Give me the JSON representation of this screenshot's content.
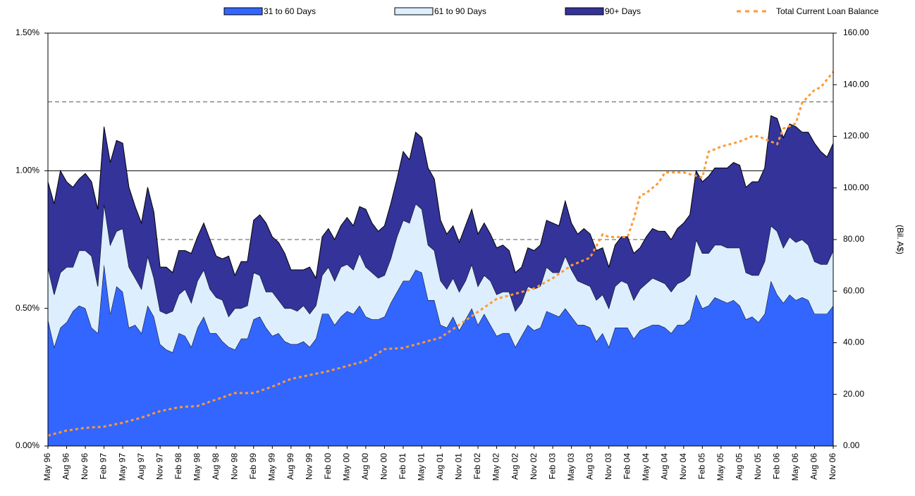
{
  "chart_data": {
    "type": "area",
    "stacked": true,
    "categories": [
      "May 96",
      null,
      null,
      "Aug 96",
      null,
      null,
      "Nov 96",
      null,
      null,
      "Feb 97",
      null,
      null,
      "May 97",
      null,
      null,
      "Aug 97",
      null,
      null,
      "Nov 97",
      null,
      null,
      "Feb 98",
      null,
      null,
      "May 98",
      null,
      null,
      "Aug 98",
      null,
      null,
      "Nov 98",
      null,
      null,
      "Feb 99",
      null,
      null,
      "May 99",
      null,
      null,
      "Aug 99",
      null,
      null,
      "Nov 99",
      null,
      null,
      "Feb 00",
      null,
      null,
      "May 00",
      null,
      null,
      "Aug 00",
      null,
      null,
      "Nov 00",
      null,
      null,
      "Feb 01",
      null,
      null,
      "May 01",
      null,
      null,
      "Aug 01",
      null,
      null,
      "Nov 01",
      null,
      null,
      "Feb 02",
      null,
      null,
      "May 02",
      null,
      null,
      "Aug 02",
      null,
      null,
      "Nov 02",
      null,
      null,
      "Feb 03",
      null,
      null,
      "May 03",
      null,
      null,
      "Aug 03",
      null,
      null,
      "Nov 03",
      null,
      null,
      "Feb 04",
      null,
      null,
      "May 04",
      null,
      null,
      "Aug 04",
      null,
      null,
      "Nov 04",
      null,
      null,
      "Feb 05",
      null,
      null,
      "May 05",
      null,
      null,
      "Aug 05",
      null,
      null,
      "Nov 05",
      null,
      null,
      "Feb 06",
      null,
      null,
      "May 06",
      null,
      null,
      "Aug 06",
      null,
      null,
      "Nov 06"
    ],
    "series": [
      {
        "name": "31 to 60 Days",
        "color": "#3366ff",
        "values": [
          0.46,
          0.36,
          0.43,
          0.45,
          0.49,
          0.51,
          0.5,
          0.43,
          0.41,
          0.66,
          0.48,
          0.58,
          0.56,
          0.43,
          0.44,
          0.41,
          0.51,
          0.47,
          0.37,
          0.35,
          0.34,
          0.41,
          0.4,
          0.36,
          0.43,
          0.47,
          0.41,
          0.41,
          0.38,
          0.36,
          0.35,
          0.39,
          0.39,
          0.46,
          0.47,
          0.43,
          0.4,
          0.41,
          0.38,
          0.37,
          0.37,
          0.38,
          0.36,
          0.39,
          0.48,
          0.48,
          0.44,
          0.47,
          0.49,
          0.48,
          0.51,
          0.47,
          0.46,
          0.46,
          0.47,
          0.52,
          0.56,
          0.6,
          0.6,
          0.64,
          0.63,
          0.53,
          0.53,
          0.44,
          0.43,
          0.47,
          0.42,
          0.46,
          0.5,
          0.44,
          0.48,
          0.44,
          0.4,
          0.41,
          0.41,
          0.36,
          0.4,
          0.44,
          0.42,
          0.43,
          0.49,
          0.48,
          0.47,
          0.5,
          0.47,
          0.44,
          0.44,
          0.43,
          0.38,
          0.41,
          0.36,
          0.43,
          0.43,
          0.43,
          0.39,
          0.42,
          0.43,
          0.44,
          0.44,
          0.43,
          0.41,
          0.44,
          0.44,
          0.46,
          0.55,
          0.5,
          0.51,
          0.54,
          0.53,
          0.52,
          0.53,
          0.51,
          0.46,
          0.47,
          0.45,
          0.48,
          0.6,
          0.55,
          0.52,
          0.55,
          0.53,
          0.54,
          0.53,
          0.48,
          0.48,
          0.48,
          0.51
        ]
      },
      {
        "name": "61 to 90 Days",
        "color": "#ddeeff",
        "values": [
          0.19,
          0.19,
          0.2,
          0.2,
          0.16,
          0.2,
          0.21,
          0.26,
          0.17,
          0.22,
          0.25,
          0.2,
          0.23,
          0.22,
          0.17,
          0.16,
          0.18,
          0.14,
          0.12,
          0.13,
          0.15,
          0.14,
          0.17,
          0.16,
          0.17,
          0.17,
          0.16,
          0.13,
          0.15,
          0.11,
          0.15,
          0.11,
          0.12,
          0.17,
          0.15,
          0.13,
          0.16,
          0.12,
          0.12,
          0.13,
          0.12,
          0.13,
          0.12,
          0.12,
          0.14,
          0.17,
          0.16,
          0.18,
          0.17,
          0.16,
          0.19,
          0.18,
          0.17,
          0.15,
          0.15,
          0.16,
          0.2,
          0.22,
          0.21,
          0.24,
          0.23,
          0.2,
          0.18,
          0.16,
          0.14,
          0.14,
          0.14,
          0.14,
          0.16,
          0.14,
          0.14,
          0.16,
          0.15,
          0.15,
          0.15,
          0.13,
          0.12,
          0.14,
          0.15,
          0.15,
          0.16,
          0.15,
          0.16,
          0.19,
          0.17,
          0.16,
          0.15,
          0.15,
          0.15,
          0.14,
          0.14,
          0.15,
          0.17,
          0.16,
          0.14,
          0.15,
          0.16,
          0.17,
          0.16,
          0.16,
          0.15,
          0.15,
          0.16,
          0.16,
          0.2,
          0.2,
          0.19,
          0.19,
          0.2,
          0.2,
          0.19,
          0.21,
          0.17,
          0.15,
          0.17,
          0.19,
          0.2,
          0.23,
          0.2,
          0.21,
          0.21,
          0.21,
          0.2,
          0.19,
          0.18,
          0.18,
          0.2
        ]
      },
      {
        "name": "90+ Days",
        "color": "#333399",
        "values": [
          0.31,
          0.33,
          0.37,
          0.31,
          0.29,
          0.26,
          0.28,
          0.27,
          0.28,
          0.28,
          0.3,
          0.33,
          0.31,
          0.29,
          0.26,
          0.24,
          0.25,
          0.24,
          0.16,
          0.17,
          0.14,
          0.16,
          0.14,
          0.18,
          0.16,
          0.17,
          0.18,
          0.15,
          0.15,
          0.22,
          0.12,
          0.17,
          0.16,
          0.19,
          0.22,
          0.25,
          0.2,
          0.21,
          0.2,
          0.14,
          0.15,
          0.13,
          0.17,
          0.1,
          0.14,
          0.14,
          0.15,
          0.15,
          0.17,
          0.16,
          0.17,
          0.21,
          0.18,
          0.17,
          0.18,
          0.2,
          0.21,
          0.25,
          0.23,
          0.26,
          0.26,
          0.28,
          0.26,
          0.22,
          0.2,
          0.19,
          0.18,
          0.2,
          0.2,
          0.19,
          0.19,
          0.17,
          0.17,
          0.17,
          0.15,
          0.14,
          0.13,
          0.14,
          0.14,
          0.15,
          0.17,
          0.18,
          0.17,
          0.2,
          0.17,
          0.17,
          0.2,
          0.19,
          0.18,
          0.17,
          0.15,
          0.15,
          0.16,
          0.17,
          0.17,
          0.15,
          0.17,
          0.18,
          0.18,
          0.19,
          0.19,
          0.2,
          0.21,
          0.22,
          0.25,
          0.26,
          0.28,
          0.28,
          0.28,
          0.29,
          0.31,
          0.3,
          0.31,
          0.34,
          0.34,
          0.34,
          0.4,
          0.41,
          0.4,
          0.41,
          0.42,
          0.39,
          0.41,
          0.43,
          0.41,
          0.39,
          0.39
        ]
      },
      {
        "name": "Total Current Loan Balance",
        "color": "#ff9933",
        "type": "line",
        "axis": "y2",
        "values": [
          4.0,
          4.7,
          5.3,
          6.0,
          6.3,
          6.7,
          7.0,
          7.2,
          7.3,
          7.5,
          8.0,
          8.5,
          9.0,
          9.7,
          10.3,
          11.0,
          11.8,
          12.7,
          13.5,
          14.0,
          14.5,
          15.0,
          15.2,
          15.3,
          15.5,
          16.3,
          17.2,
          18.0,
          18.8,
          19.7,
          20.5,
          20.5,
          20.5,
          20.5,
          21.3,
          22.2,
          23.0,
          24.0,
          25.0,
          26.0,
          26.5,
          27.0,
          27.5,
          28.0,
          28.5,
          29.0,
          29.7,
          30.3,
          31.0,
          31.7,
          32.3,
          33.0,
          34.5,
          36.0,
          37.5,
          37.7,
          37.8,
          38.0,
          38.7,
          39.3,
          40.0,
          40.7,
          41.3,
          42.0,
          43.7,
          45.3,
          47.0,
          48.7,
          50.3,
          52.0,
          53.7,
          55.3,
          57.0,
          57.7,
          58.3,
          59.0,
          59.7,
          60.3,
          61.0,
          62.3,
          63.7,
          65.0,
          66.7,
          68.3,
          70.0,
          71.0,
          72.0,
          73.0,
          77.5,
          82.0,
          81.0,
          81.0,
          81.0,
          81.0,
          88.0,
          97.0,
          98.0,
          100.0,
          102.0,
          106.0,
          106.0,
          106.0,
          106.0,
          105.3,
          104.7,
          104.0,
          114.0,
          115.0,
          116.0,
          116.7,
          117.3,
          118.0,
          119.0,
          120.0,
          120.0,
          119.0,
          118.0,
          117.0,
          123.0,
          124.0,
          125.0,
          133.0,
          135.5,
          138.0,
          139.0,
          142.0,
          145.0
        ]
      }
    ],
    "ylim": [
      0,
      1.5
    ],
    "yticks": [
      {
        "value": 0,
        "label": "0.00%"
      },
      {
        "value": 0.5,
        "label": "0.50%"
      },
      {
        "value": 1.0,
        "label": "1.00%"
      },
      {
        "value": 1.5,
        "label": "1.50%"
      }
    ],
    "y2lim": [
      0,
      160
    ],
    "y2ticks": [
      {
        "value": 0,
        "label": "0.00"
      },
      {
        "value": 20,
        "label": "20.00"
      },
      {
        "value": 40,
        "label": "40.00"
      },
      {
        "value": 60,
        "label": "60.00"
      },
      {
        "value": 80,
        "label": "80.00"
      },
      {
        "value": 100,
        "label": "100.00"
      },
      {
        "value": 120,
        "label": "120.00"
      },
      {
        "value": 140,
        "label": "140.00"
      },
      {
        "value": 160,
        "label": "160.00"
      }
    ],
    "y2_label": "(Bil. A$)",
    "reference_lines": [
      0.75,
      1.25
    ],
    "grid": true,
    "legend": "top"
  }
}
